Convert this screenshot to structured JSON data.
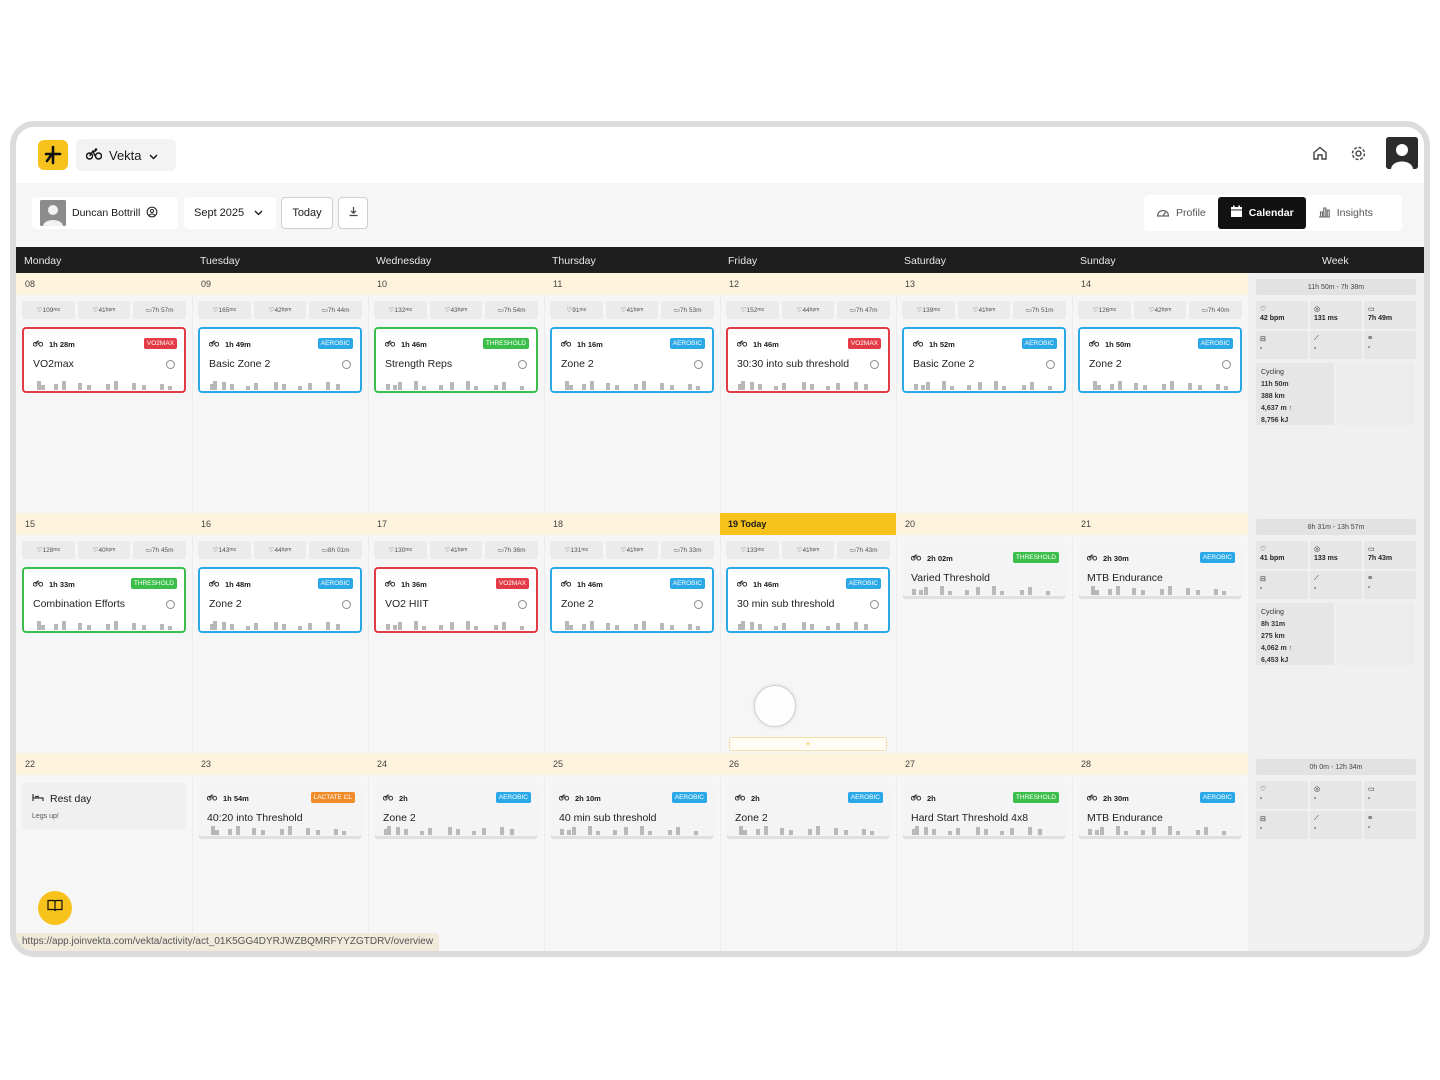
{
  "app": {
    "switcher_label": "Vekta"
  },
  "toolbar": {
    "user_name": "Duncan Bottrill",
    "month": "Sept 2025",
    "today_label": "Today",
    "tabs": [
      {
        "label": "Profile",
        "active": false
      },
      {
        "label": "Calendar",
        "active": true
      },
      {
        "label": "Insights",
        "active": false
      }
    ]
  },
  "days_header": [
    "Monday",
    "Tuesday",
    "Wednesday",
    "Thursday",
    "Friday",
    "Saturday",
    "Sunday",
    "Week"
  ],
  "colors": {
    "accent": "#f7c21c",
    "aerobic": "#2aa8e8",
    "threshold": "#3cbf4a",
    "vo2max": "#e23b45",
    "lactate": "#f08c2a"
  },
  "weeks": [
    {
      "dates": [
        "08",
        "09",
        "10",
        "11",
        "12",
        "13",
        "14"
      ],
      "metrics": [
        [
          "109",
          "41",
          "7h 57m"
        ],
        [
          "165",
          "42",
          "7h 44m"
        ],
        [
          "132",
          "43",
          "7h 54m"
        ],
        [
          "91",
          "41",
          "7h 53m"
        ],
        [
          "152",
          "44",
          "7h 47m"
        ],
        [
          "139",
          "41",
          "7h 51m"
        ],
        [
          "126",
          "42",
          "7h 40m"
        ]
      ],
      "cards": [
        {
          "duration": "1h 28m",
          "badge": "VO2MAX",
          "title": "VO2max"
        },
        {
          "duration": "1h 49m",
          "badge": "AEROBIC",
          "title": "Basic Zone 2"
        },
        {
          "duration": "1h 46m",
          "badge": "THRESHOLD",
          "title": "Strength Reps"
        },
        {
          "duration": "1h 16m",
          "badge": "AEROBIC",
          "title": "Zone 2"
        },
        {
          "duration": "1h 46m",
          "badge": "VO2MAX",
          "title": "30:30 into sub threshold"
        },
        {
          "duration": "1h 52m",
          "badge": "AEROBIC",
          "title": "Basic Zone 2"
        },
        {
          "duration": "1h 50m",
          "badge": "AEROBIC",
          "title": "Zone 2"
        }
      ],
      "summary": {
        "header": "11h 50m - 7h 38m",
        "cells": [
          "42 bpm",
          "131 ms",
          "7h 49m",
          "-",
          "-",
          "-"
        ],
        "sport": {
          "name": "Cycling",
          "time": "11h 50m",
          "distance": "388 km",
          "elevation": "4,637 m ↑",
          "energy": "8,756 kJ"
        }
      }
    },
    {
      "dates": [
        "15",
        "16",
        "17",
        "18",
        "19 Today",
        "20",
        "21"
      ],
      "metrics": [
        [
          "128",
          "40",
          "7h 45m"
        ],
        [
          "143",
          "44",
          "8h 01m"
        ],
        [
          "130",
          "41",
          "7h 36m"
        ],
        [
          "131",
          "41",
          "7h 33m"
        ],
        [
          "133",
          "41",
          "7h 43m"
        ]
      ],
      "cards": [
        {
          "duration": "1h 33m",
          "badge": "THRESHOLD",
          "title": "Combination Efforts"
        },
        {
          "duration": "1h 48m",
          "badge": "AEROBIC",
          "title": "Zone 2"
        },
        {
          "duration": "1h 36m",
          "badge": "VO2MAX",
          "title": "VO2 HIIT"
        },
        {
          "duration": "1h 46m",
          "badge": "AEROBIC",
          "title": "Zone 2"
        },
        {
          "duration": "1h 46m",
          "badge": "AEROBIC",
          "title": "30 min sub threshold"
        },
        {
          "duration": "2h 02m",
          "badge": "THRESHOLD",
          "title": "Varied Threshold"
        },
        {
          "duration": "2h 30m",
          "badge": "AEROBIC",
          "title": "MTB Endurance"
        }
      ],
      "add_label": "+",
      "summary": {
        "header": "8h 31m - 13h 57m",
        "cells": [
          "41 bpm",
          "133 ms",
          "7h 43m",
          "-",
          "-",
          "-"
        ],
        "sport": {
          "name": "Cycling",
          "time": "8h 31m",
          "distance": "275 km",
          "elevation": "4,062 m ↑",
          "energy": "6,453 kJ"
        }
      }
    },
    {
      "dates": [
        "22",
        "23",
        "24",
        "25",
        "26",
        "27",
        "28"
      ],
      "rest": {
        "title": "Rest day",
        "subtitle": "Legs up!"
      },
      "cards": [
        {
          "duration": "1h 54m",
          "badge": "LACTATE CL",
          "title": "40:20 into Threshold"
        },
        {
          "duration": "2h",
          "badge": "AEROBIC",
          "title": "Zone 2"
        },
        {
          "duration": "2h 10m",
          "badge": "AEROBIC",
          "title": "40 min sub threshold"
        },
        {
          "duration": "2h",
          "badge": "AEROBIC",
          "title": "Zone 2"
        },
        {
          "duration": "2h",
          "badge": "THRESHOLD",
          "title": "Hard Start Threshold 4x8"
        },
        {
          "duration": "2h 30m",
          "badge": "AEROBIC",
          "title": "MTB Endurance"
        }
      ],
      "summary": {
        "header": "0h 0m - 12h 34m",
        "cells": [
          "-",
          "-",
          "-",
          "-",
          "-",
          "-"
        ]
      }
    }
  ],
  "units": {
    "hrv": "ms",
    "hr": "bpm"
  },
  "status_url": "https://app.joinvekta.com/vekta/activity/act_01K5GG4DYRJWZBQMRFYYZGTDRV/overview"
}
